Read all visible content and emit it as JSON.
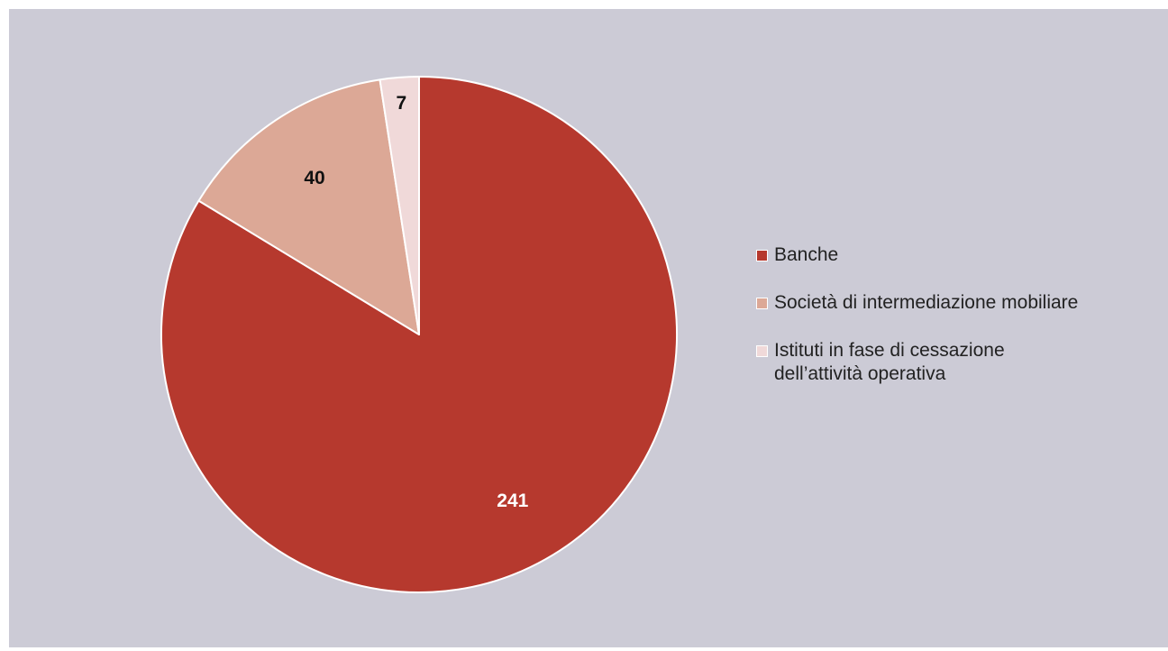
{
  "chart_data": {
    "type": "pie",
    "title": "",
    "slices": [
      {
        "label": "Banche",
        "value": 241,
        "color": "#b6392e",
        "label_color": "#ffffff"
      },
      {
        "label": "Società di intermediazione mobiliare",
        "value": 40,
        "color": "#dca896",
        "label_color": "#111111"
      },
      {
        "label": "Istituti in fase di cessazione dell’attività operativa",
        "value": 7,
        "color": "#f0d9d9",
        "label_color": "#111111"
      }
    ],
    "start": "12 o'clock",
    "direction": "clockwise",
    "legend_position": "right"
  }
}
